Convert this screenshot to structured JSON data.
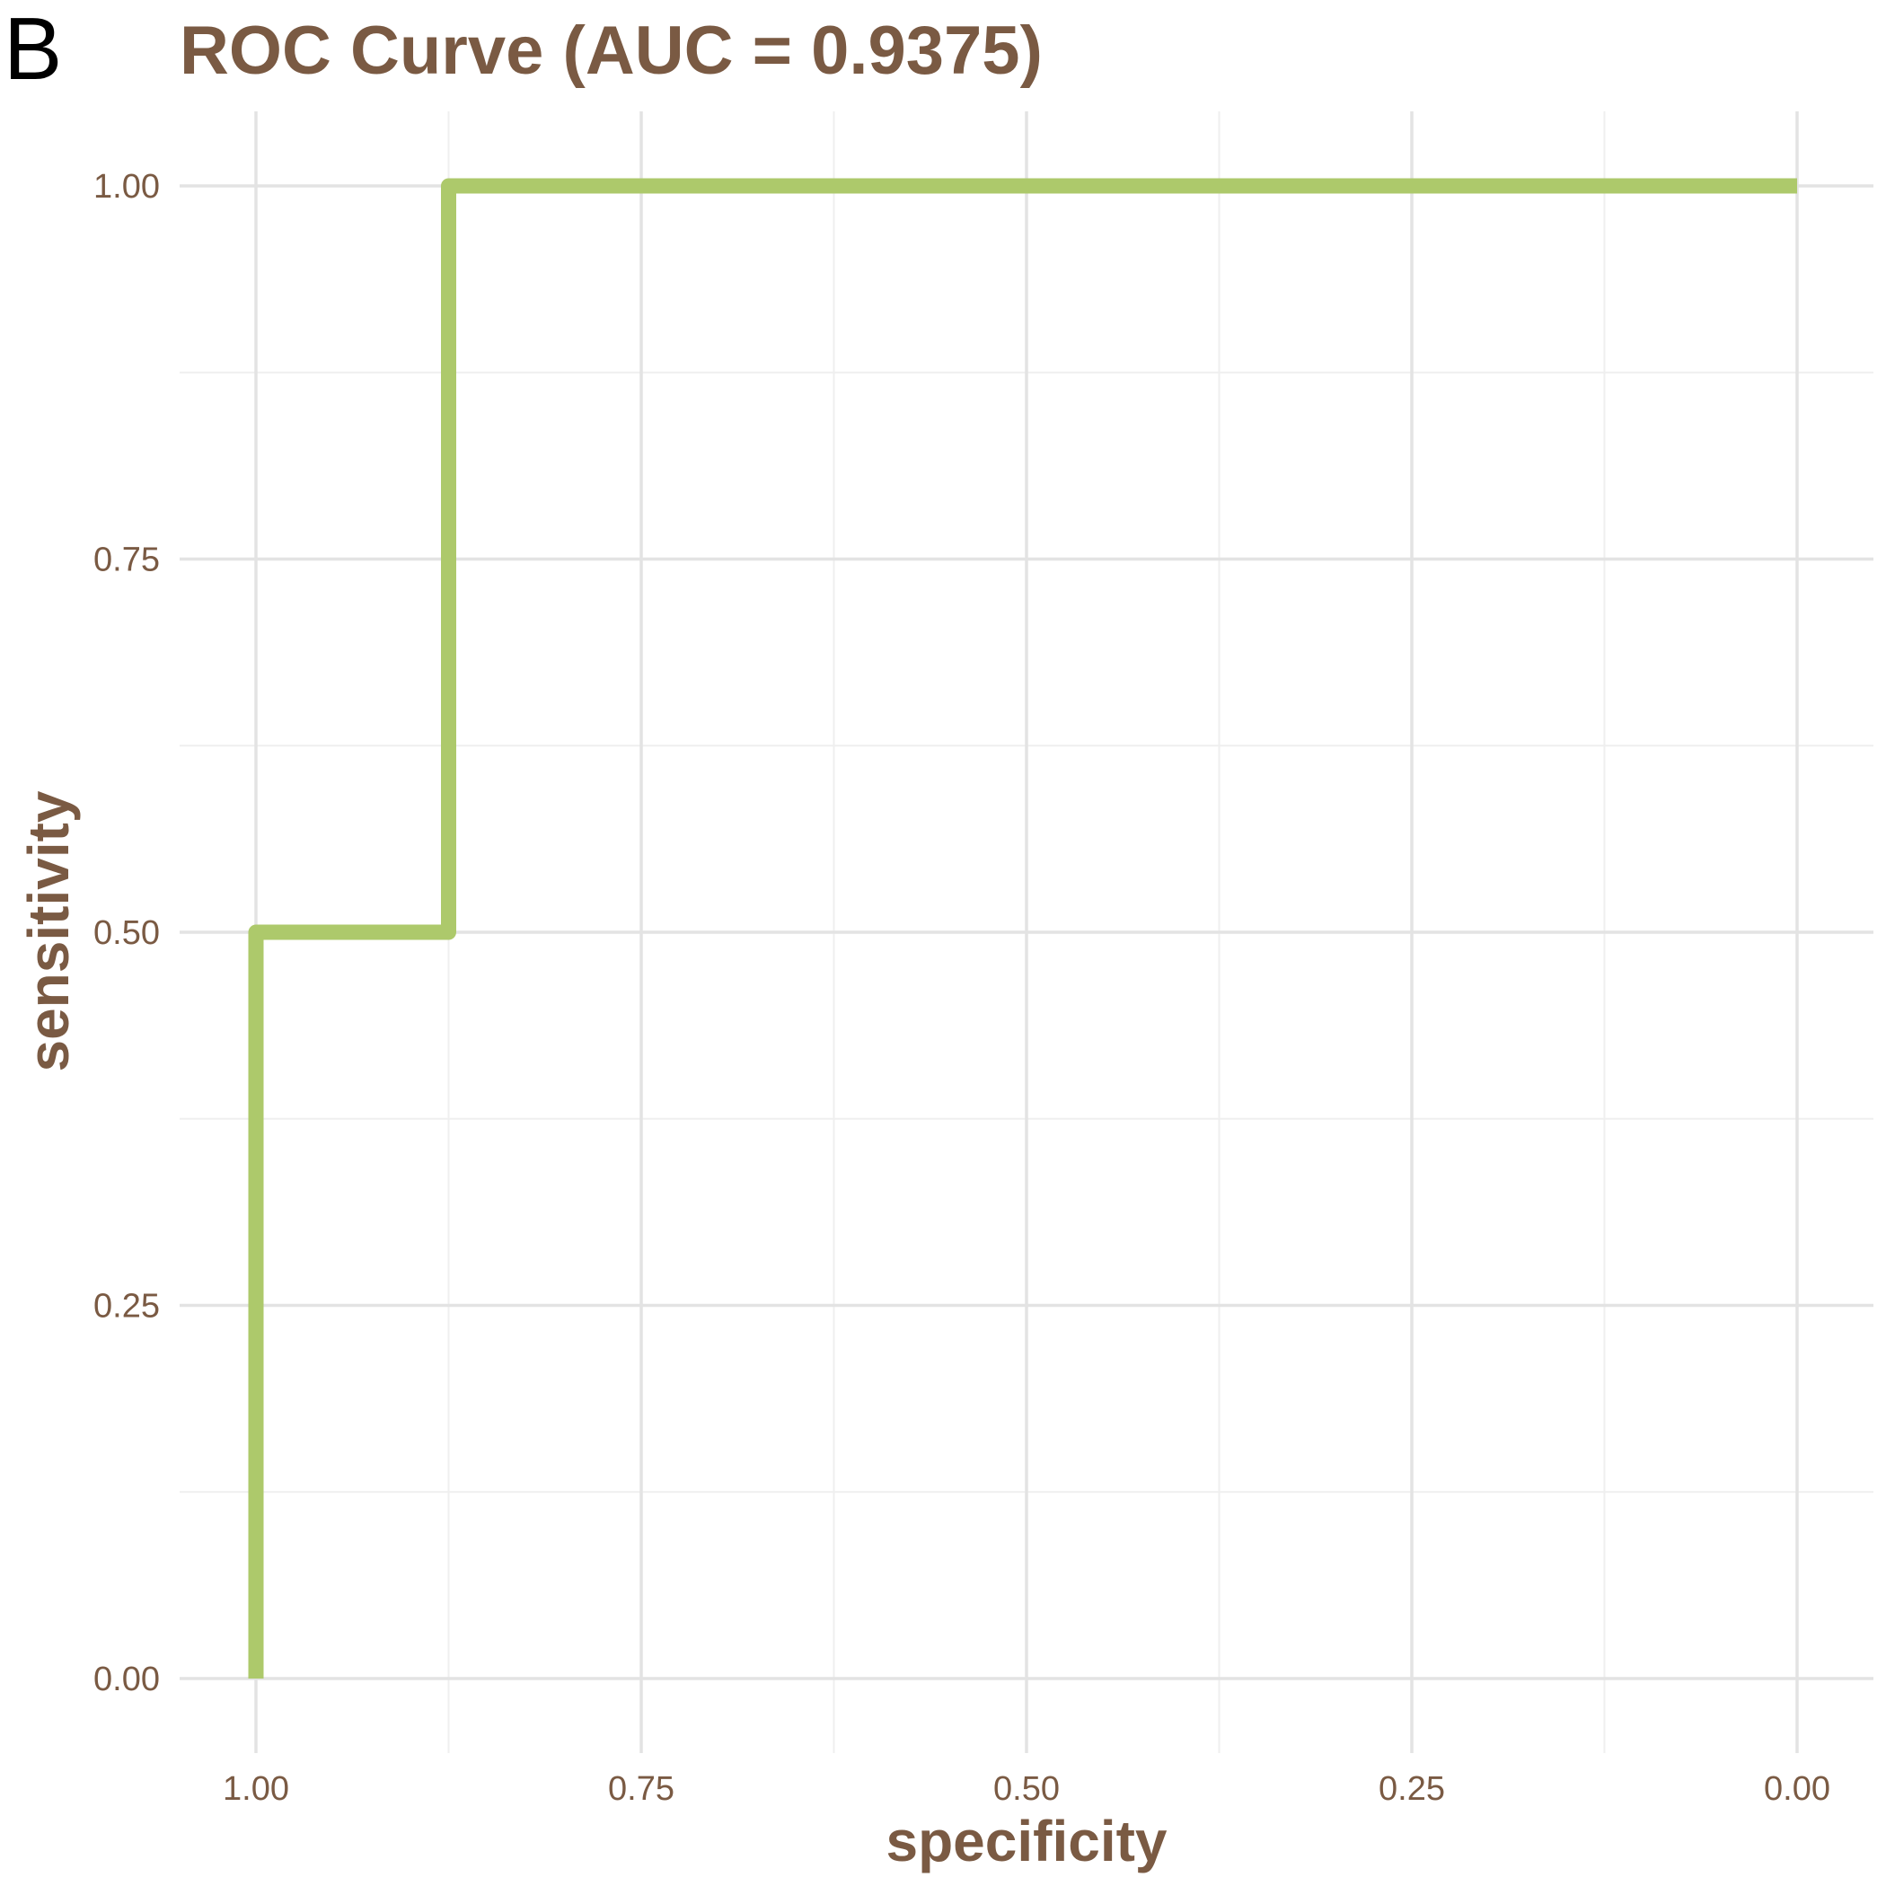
{
  "panel_label": "B",
  "colors": {
    "text": "#7a5a43",
    "curve": "#adc96b",
    "grid_major": "#e3e3e3",
    "grid_minor": "#efefef",
    "background": "#ffffff"
  },
  "chart_data": {
    "type": "line",
    "title": "ROC Curve (AUC = 0.9375)",
    "xlabel": "specificity",
    "ylabel": "sensitivity",
    "x_reversed": true,
    "xlim": [
      1.0,
      0.0
    ],
    "ylim": [
      0.0,
      1.0
    ],
    "xticks": [
      1.0,
      0.75,
      0.5,
      0.25,
      0.0
    ],
    "xtick_labels": [
      "1.00",
      "0.75",
      "0.50",
      "0.25",
      "0.00"
    ],
    "yticks": [
      0.0,
      0.25,
      0.5,
      0.75,
      1.0
    ],
    "ytick_labels": [
      "0.00",
      "0.25",
      "0.50",
      "0.75",
      "1.00"
    ],
    "grid": true,
    "legend": "none",
    "series": [
      {
        "x": [
          1.0,
          1.0,
          0.875,
          0.875,
          0.0
        ],
        "y": [
          0.0,
          0.5,
          0.5,
          1.0,
          1.0
        ]
      }
    ]
  }
}
